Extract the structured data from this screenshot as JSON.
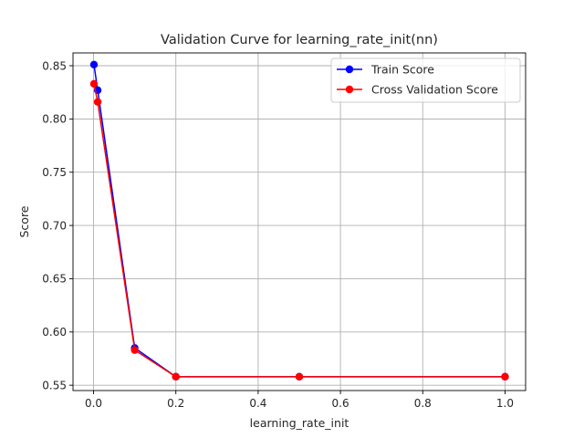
{
  "chart_data": {
    "type": "line",
    "title": "Validation Curve for learning_rate_init(nn)",
    "xlabel": "learning_rate_init",
    "ylabel": "Score",
    "xlim": [
      -0.05,
      1.05
    ],
    "ylim": [
      0.545,
      0.862
    ],
    "xticks": [
      0.0,
      0.2,
      0.4,
      0.6,
      0.8,
      1.0
    ],
    "xtick_labels": [
      "0.0",
      "0.2",
      "0.4",
      "0.6",
      "0.8",
      "1.0"
    ],
    "yticks": [
      0.55,
      0.6,
      0.65,
      0.7,
      0.75,
      0.8,
      0.85
    ],
    "ytick_labels": [
      "0.55",
      "0.60",
      "0.65",
      "0.70",
      "0.75",
      "0.80",
      "0.85"
    ],
    "grid": true,
    "legend_position": "top-right",
    "x": [
      0.001,
      0.01,
      0.1,
      0.2,
      0.5,
      1.0
    ],
    "series": [
      {
        "name": "Train Score",
        "color": "#0000ff",
        "values": [
          0.851,
          0.827,
          0.585,
          0.558,
          0.558,
          0.558
        ]
      },
      {
        "name": "Cross Validation Score",
        "color": "#ff0000",
        "values": [
          0.833,
          0.816,
          0.583,
          0.558,
          0.558,
          0.558
        ]
      }
    ]
  }
}
